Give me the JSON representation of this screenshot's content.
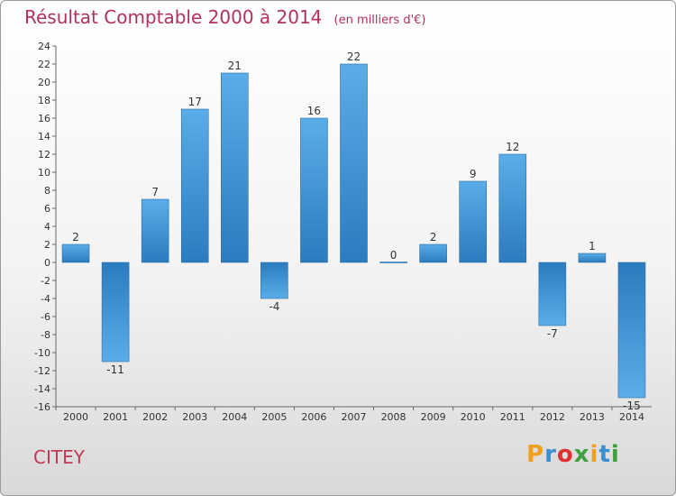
{
  "title": "Résultat Comptable 2000 à 2014",
  "subtitle": "(en milliers d'€)",
  "commune": "CITEY",
  "logo": {
    "letters": [
      "P",
      "r",
      "o",
      "x",
      "i",
      "t",
      "i"
    ],
    "colors": [
      "#f0a020",
      "#3a8fd0",
      "#e03030",
      "#40a040",
      "#f0a020",
      "#3a8fd0",
      "#40a040"
    ]
  },
  "colors": {
    "bar_light": "#5aade8",
    "bar_dark": "#2b7bbf",
    "title": "#b03060"
  },
  "chart_data": {
    "type": "bar",
    "categories": [
      "2000",
      "2001",
      "2002",
      "2003",
      "2004",
      "2005",
      "2006",
      "2007",
      "2008",
      "2009",
      "2010",
      "2011",
      "2012",
      "2013",
      "2014"
    ],
    "values": [
      2,
      -11,
      7,
      17,
      21,
      -4,
      16,
      22,
      0,
      2,
      9,
      12,
      -7,
      1,
      -15
    ],
    "data_labels": [
      "2",
      "-11",
      "7",
      "17",
      "21",
      "-4",
      "16",
      "22",
      "0",
      "2",
      "9",
      "12",
      "-7",
      "1",
      "-15"
    ],
    "yticks": [
      "-16",
      "-14",
      "-12",
      "-10",
      "-8",
      "-6",
      "-4",
      "-2",
      "0",
      "2",
      "4",
      "6",
      "8",
      "10",
      "12",
      "14",
      "16",
      "18",
      "20",
      "22",
      "24"
    ],
    "ylim": [
      -16,
      24
    ],
    "grid": false,
    "legend": "none"
  }
}
